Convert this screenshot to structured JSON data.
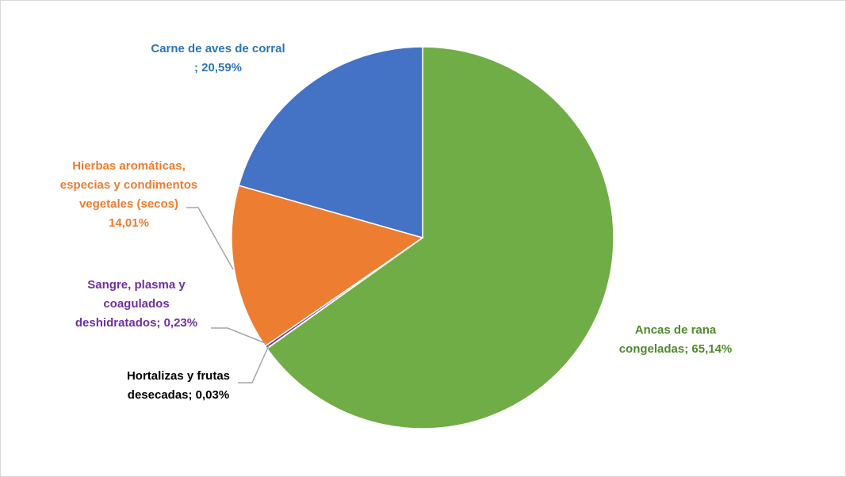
{
  "chart_data": {
    "type": "pie",
    "title": "",
    "slices": [
      {
        "name": "Ancas de rana congeladas",
        "value": 65.14,
        "value_label": "65,14%",
        "label_lines": [
          "Ancas de rana",
          "congeladas; 65,14%"
        ],
        "color": "#70ad47"
      },
      {
        "name": "Hortalizas y frutas desecadas",
        "value": 0.03,
        "value_label": "0,03%",
        "label_lines": [
          "Hortalizas y frutas",
          "desecadas; 0,03%"
        ],
        "color": "#5b9bd5",
        "label_color": "#000000"
      },
      {
        "name": "Sangre, plasma y coagulados deshidratados",
        "value": 0.23,
        "value_label": "0,23%",
        "label_lines": [
          "Sangre, plasma y",
          "coagulados",
          "deshidratados; 0,23%"
        ],
        "color": "#7030a0"
      },
      {
        "name": "Hierbas aromáticas, especias y condimentos vegetales (secos)",
        "value": 14.01,
        "value_label": "14,01%",
        "label_lines": [
          "Hierbas aromáticas,",
          "especias y condimentos",
          "vegetales (secos)",
          "14,01%"
        ],
        "color": "#ed7d31"
      },
      {
        "name": "Carne de aves de corral",
        "value": 20.59,
        "value_label": "20,59%",
        "label_lines": [
          "Carne de aves de corral",
          "; 20,59%"
        ],
        "color": "#4472c4"
      }
    ],
    "start_angle": "12 o'clock",
    "direction": "clockwise",
    "legend": "none",
    "label_colors": {
      "Ancas de rana congeladas": "#4e8a2e",
      "Hortalizas y frutas desecadas": "#000000",
      "Sangre, plasma y coagulados deshidratados": "#7030a0",
      "Hierbas aromáticas, especias y condimentos vegetales (secos)": "#ed7d31",
      "Carne de aves de corral": "#2e75b6"
    }
  }
}
